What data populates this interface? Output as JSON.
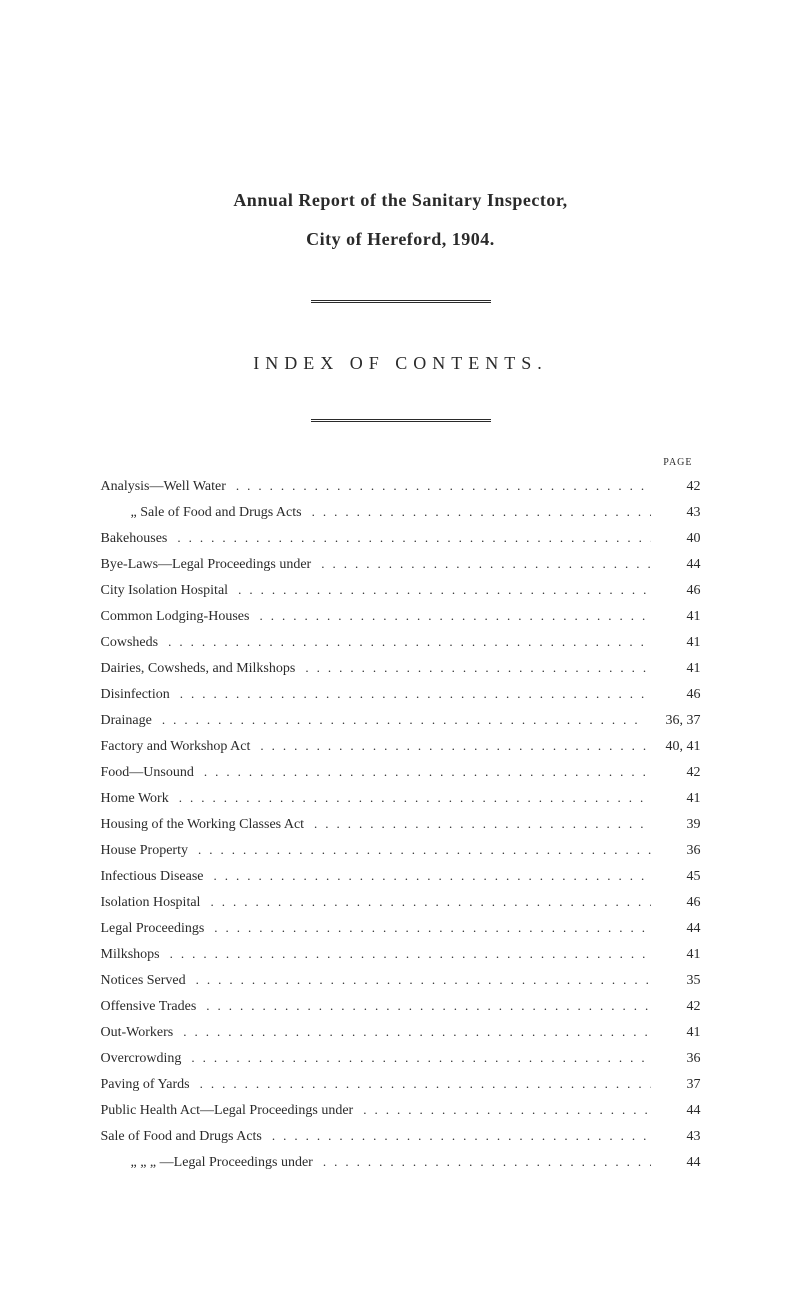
{
  "title": {
    "line1": "Annual Report of the Sanitary Inspector,",
    "line2": "City of Hereford, 1904."
  },
  "index_heading": "INDEX OF CONTENTS.",
  "page_header": "PAGE",
  "entries": [
    {
      "label": "Analysis—Well Water",
      "page": "42",
      "indent": false
    },
    {
      "label": "„      Sale of Food and Drugs Acts",
      "page": "43",
      "indent": true
    },
    {
      "label": "Bakehouses",
      "page": "40",
      "indent": false
    },
    {
      "label": "Bye-Laws—Legal Proceedings under",
      "page": "44",
      "indent": false
    },
    {
      "label": "City Isolation Hospital",
      "page": "46",
      "indent": false
    },
    {
      "label": "Common Lodging-Houses",
      "page": "41",
      "indent": false
    },
    {
      "label": "Cowsheds",
      "page": "41",
      "indent": false
    },
    {
      "label": "Dairies, Cowsheds, and Milkshops",
      "page": "41",
      "indent": false
    },
    {
      "label": "Disinfection",
      "page": "46",
      "indent": false
    },
    {
      "label": "Drainage",
      "page": "36, 37",
      "indent": false
    },
    {
      "label": "Factory and Workshop Act",
      "page": "40, 41",
      "indent": false
    },
    {
      "label": "Food—Unsound",
      "page": "42",
      "indent": false
    },
    {
      "label": "Home Work",
      "page": "41",
      "indent": false
    },
    {
      "label": "Housing of the Working Classes Act",
      "page": "39",
      "indent": false
    },
    {
      "label": "House Property",
      "page": "36",
      "indent": false
    },
    {
      "label": "Infectious Disease",
      "page": "45",
      "indent": false
    },
    {
      "label": "Isolation Hospital",
      "page": "46",
      "indent": false
    },
    {
      "label": "Legal Proceedings",
      "page": "44",
      "indent": false
    },
    {
      "label": "Milkshops",
      "page": "41",
      "indent": false
    },
    {
      "label": "Notices Served",
      "page": "35",
      "indent": false
    },
    {
      "label": "Offensive Trades",
      "page": "42",
      "indent": false
    },
    {
      "label": "Out-Workers",
      "page": "41",
      "indent": false
    },
    {
      "label": "Overcrowding",
      "page": "36",
      "indent": false
    },
    {
      "label": "Paving of Yards",
      "page": "37",
      "indent": false
    },
    {
      "label": "Public Health Act—Legal Proceedings under",
      "page": "44",
      "indent": false
    },
    {
      "label": "Sale of Food and Drugs Acts",
      "page": "43",
      "indent": false
    },
    {
      "label": "„       „       „      —Legal Proceedings under",
      "page": "44",
      "indent": true
    }
  ],
  "colors": {
    "background": "#ffffff",
    "text": "#2a2a2a"
  },
  "typography": {
    "body_fontsize": 14,
    "title_fontsize": 18,
    "heading_letter_spacing": 6
  }
}
